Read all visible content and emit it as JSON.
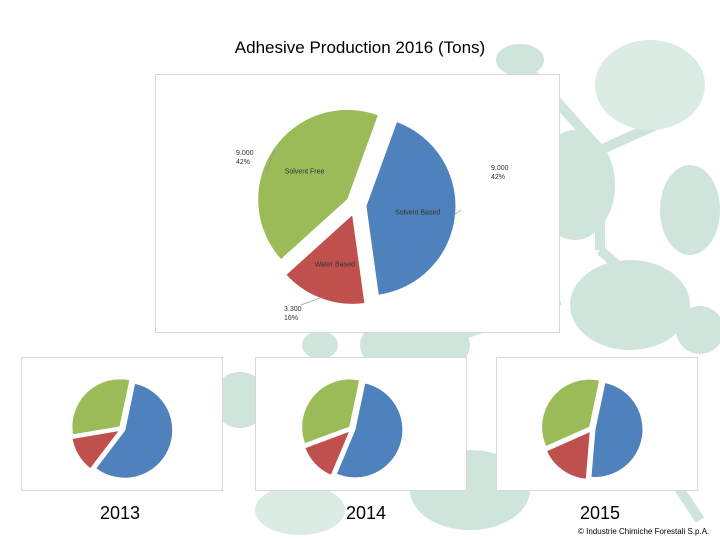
{
  "colors": {
    "solvent_free": "#9bbb59",
    "solvent_based": "#4f81bd",
    "water_based": "#c0504d",
    "decor": "#cfe5dc"
  },
  "chart_data": [
    {
      "type": "pie",
      "title": "Adhesive Production 2016 (Tons)",
      "slices": [
        {
          "name": "Solvent Based",
          "value": 9000,
          "value_label": "9.000",
          "pct_label": "42%",
          "color": "#4f81bd",
          "exploded": true
        },
        {
          "name": "Water Based",
          "value": 3300,
          "value_label": "3.300",
          "pct_label": "16%",
          "color": "#c0504d",
          "exploded": true
        },
        {
          "name": "Solvent Free",
          "value": 9000,
          "value_label": "9.000",
          "pct_label": "42%",
          "color": "#9bbb59",
          "exploded": true
        }
      ]
    },
    {
      "type": "pie",
      "title": "2013",
      "slices": [
        {
          "name": "Solvent Based",
          "value": 57,
          "color": "#4f81bd"
        },
        {
          "name": "Water Based",
          "value": 12,
          "color": "#c0504d"
        },
        {
          "name": "Solvent Free",
          "value": 31,
          "color": "#9bbb59"
        }
      ]
    },
    {
      "type": "pie",
      "title": "2014",
      "slices": [
        {
          "name": "Solvent Based",
          "value": 53,
          "color": "#4f81bd"
        },
        {
          "name": "Water Based",
          "value": 13,
          "color": "#c0504d"
        },
        {
          "name": "Solvent Free",
          "value": 34,
          "color": "#9bbb59"
        }
      ]
    },
    {
      "type": "pie",
      "title": "2015",
      "slices": [
        {
          "name": "Solvent Based",
          "value": 48,
          "color": "#4f81bd"
        },
        {
          "name": "Water Based",
          "value": 17,
          "color": "#c0504d"
        },
        {
          "name": "Solvent Free",
          "value": 35,
          "color": "#9bbb59"
        }
      ]
    }
  ],
  "footer": {
    "copyright": "© Industrie Chimiche Forestali S.p.A."
  }
}
